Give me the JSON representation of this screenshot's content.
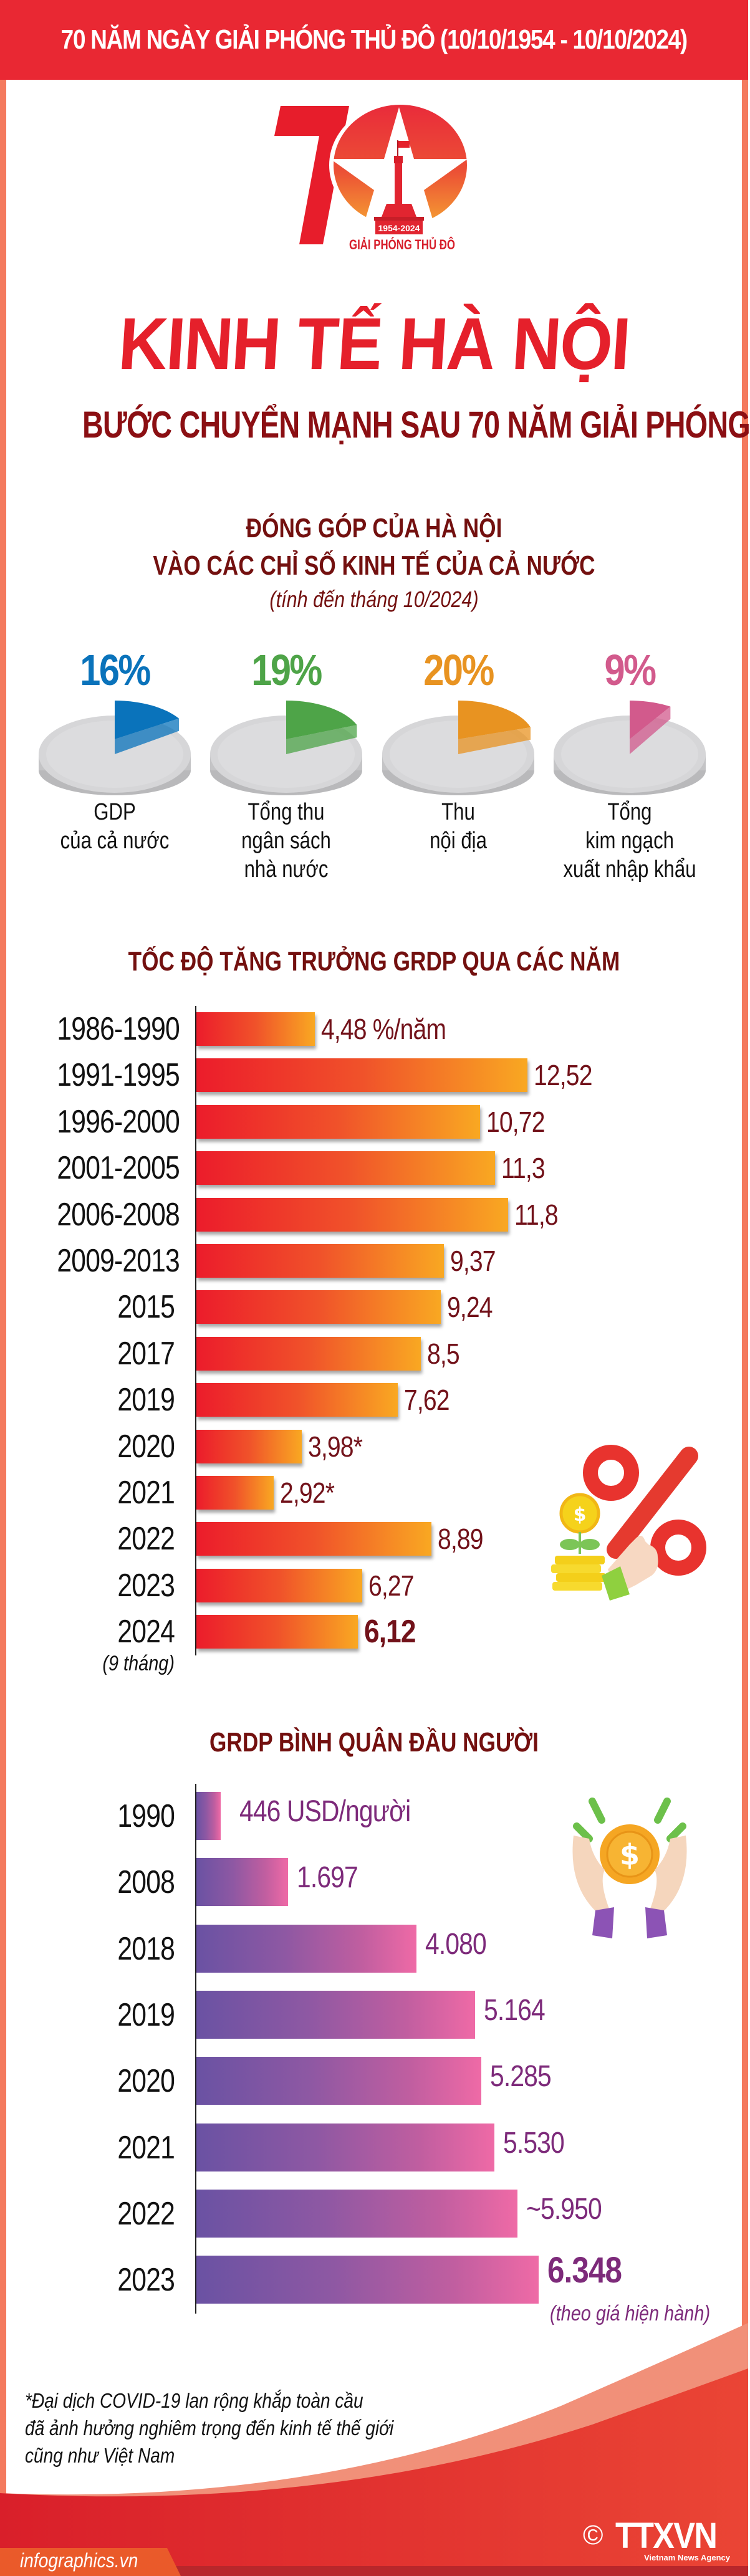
{
  "banner": {
    "title": "70 NĂM NGÀY GIẢI PHÓNG THỦ ĐÔ  (10/10/1954 - 10/10/2024)"
  },
  "logo": {
    "number": "70",
    "years": "1954-2024",
    "caption": "GIẢI PHÓNG THỦ ĐÔ"
  },
  "header": {
    "title": "KINH TẾ HÀ NỘI",
    "subtitle": "BƯỚC CHUYỂN MẠNH SAU 70 NĂM GIẢI PHÓNG"
  },
  "contribution": {
    "title_line1": "ĐÓNG GÓP CỦA HÀ NỘI",
    "title_line2": "VÀO CÁC CHỈ SỐ KINH TẾ CỦA CẢ NƯỚC",
    "note": "(tính đến tháng 10/2024)",
    "items": [
      {
        "pct": "16%",
        "color": "#0a73bb",
        "label_lines": [
          "GDP",
          "của cả nước"
        ]
      },
      {
        "pct": "19%",
        "color": "#4ea448",
        "label_lines": [
          "Tổng thu",
          "ngân sách",
          "nhà nước"
        ]
      },
      {
        "pct": "20%",
        "color": "#e89321",
        "label_lines": [
          "Thu",
          "nội địa"
        ]
      },
      {
        "pct": "9%",
        "color": "#d25a8c",
        "label_lines": [
          "Tổng",
          "kim ngạch",
          "xuất nhập khẩu"
        ]
      }
    ]
  },
  "growth": {
    "title": "TỐC ĐỘ TĂNG TRƯỞNG GRDP QUA CÁC NĂM",
    "unit_suffix": " %/năm",
    "sub_note": "(9 tháng)",
    "rows": [
      {
        "label": "1986-1990",
        "value_text": "4,48 %/năm"
      },
      {
        "label": "1991-1995",
        "value_text": "12,52"
      },
      {
        "label": "1996-2000",
        "value_text": "10,72"
      },
      {
        "label": "2001-2005",
        "value_text": "11,3"
      },
      {
        "label": "2006-2008",
        "value_text": "11,8"
      },
      {
        "label": "2009-2013",
        "value_text": "9,37"
      },
      {
        "label": "2015",
        "value_text": "9,24"
      },
      {
        "label": "2017",
        "value_text": "8,5"
      },
      {
        "label": "2019",
        "value_text": "7,62"
      },
      {
        "label": "2020",
        "value_text": "3,98*"
      },
      {
        "label": "2021",
        "value_text": "2,92*"
      },
      {
        "label": "2022",
        "value_text": "8,89"
      },
      {
        "label": "2023",
        "value_text": "6,27"
      },
      {
        "label": "2024",
        "value_text": "6,12"
      }
    ]
  },
  "capita": {
    "title": "GRDP BÌNH QUÂN ĐẦU NGƯỜI",
    "note": "(theo giá hiện hành)",
    "rows": [
      {
        "label": "1990",
        "value_text": "446 USD/người"
      },
      {
        "label": "2008",
        "value_text": "1.697"
      },
      {
        "label": "2018",
        "value_text": "4.080"
      },
      {
        "label": "2019",
        "value_text": "5.164"
      },
      {
        "label": "2020",
        "value_text": "5.285"
      },
      {
        "label": "2021",
        "value_text": "5.530"
      },
      {
        "label": "2022",
        "value_text": "~5.950"
      },
      {
        "label": "2023",
        "value_text": "6.348"
      }
    ]
  },
  "footnote": {
    "lines": [
      "*Đại dịch COVID-19 lan rộng khắp toàn cầu",
      "đã ảnh hưởng nghiêm trọng đến kinh tế thế giới",
      "cũng như Việt Nam"
    ]
  },
  "footer": {
    "site": "infographics.vn",
    "copyright": "©",
    "brand": "TTXVN",
    "brand_sub": "Vietnam News Agency"
  },
  "colors": {
    "banner_red": "#e92833",
    "title_red": "#e5202b",
    "dark_red": "#73100f",
    "frame_salmon": "#f47a5e"
  },
  "chart_data": [
    {
      "type": "pie",
      "title": "ĐÓNG GÓP CỦA HÀ NỘI VÀO CÁC CHỈ SỐ KINH TẾ CỦA CẢ NƯỚC (tính đến tháng 10/2024)",
      "categories": [
        "GDP của cả nước",
        "Tổng thu ngân sách nhà nước",
        "Thu nội địa",
        "Tổng kim ngạch xuất nhập khẩu"
      ],
      "values": [
        16,
        19,
        20,
        9
      ],
      "unit": "%"
    },
    {
      "type": "bar",
      "orientation": "horizontal",
      "title": "TỐC ĐỘ TĂNG TRƯỞNG GRDP QUA CÁC NĂM",
      "categories": [
        "1986-1990",
        "1991-1995",
        "1996-2000",
        "2001-2005",
        "2006-2008",
        "2009-2013",
        "2015",
        "2017",
        "2019",
        "2020",
        "2021",
        "2022",
        "2023",
        "2024 (9 tháng)"
      ],
      "values": [
        4.48,
        12.52,
        10.72,
        11.3,
        11.8,
        9.37,
        9.24,
        8.5,
        7.62,
        3.98,
        2.92,
        8.89,
        6.27,
        6.12
      ],
      "unit": "%/năm",
      "annotations": [
        "2020 and 2021 marked * (COVID-19)"
      ],
      "xlabel": "",
      "ylabel": "",
      "grid": false
    },
    {
      "type": "bar",
      "orientation": "horizontal",
      "title": "GRDP BÌNH QUÂN ĐẦU NGƯỜI",
      "categories": [
        "1990",
        "2008",
        "2018",
        "2019",
        "2020",
        "2021",
        "2022",
        "2023"
      ],
      "values": [
        446,
        1697,
        4080,
        5164,
        5285,
        5530,
        5950,
        6348
      ],
      "unit": "USD/người",
      "annotations": [
        "2022 approximate (~5.950)",
        "2023: theo giá hiện hành"
      ],
      "xlabel": "",
      "ylabel": "",
      "grid": false
    }
  ]
}
